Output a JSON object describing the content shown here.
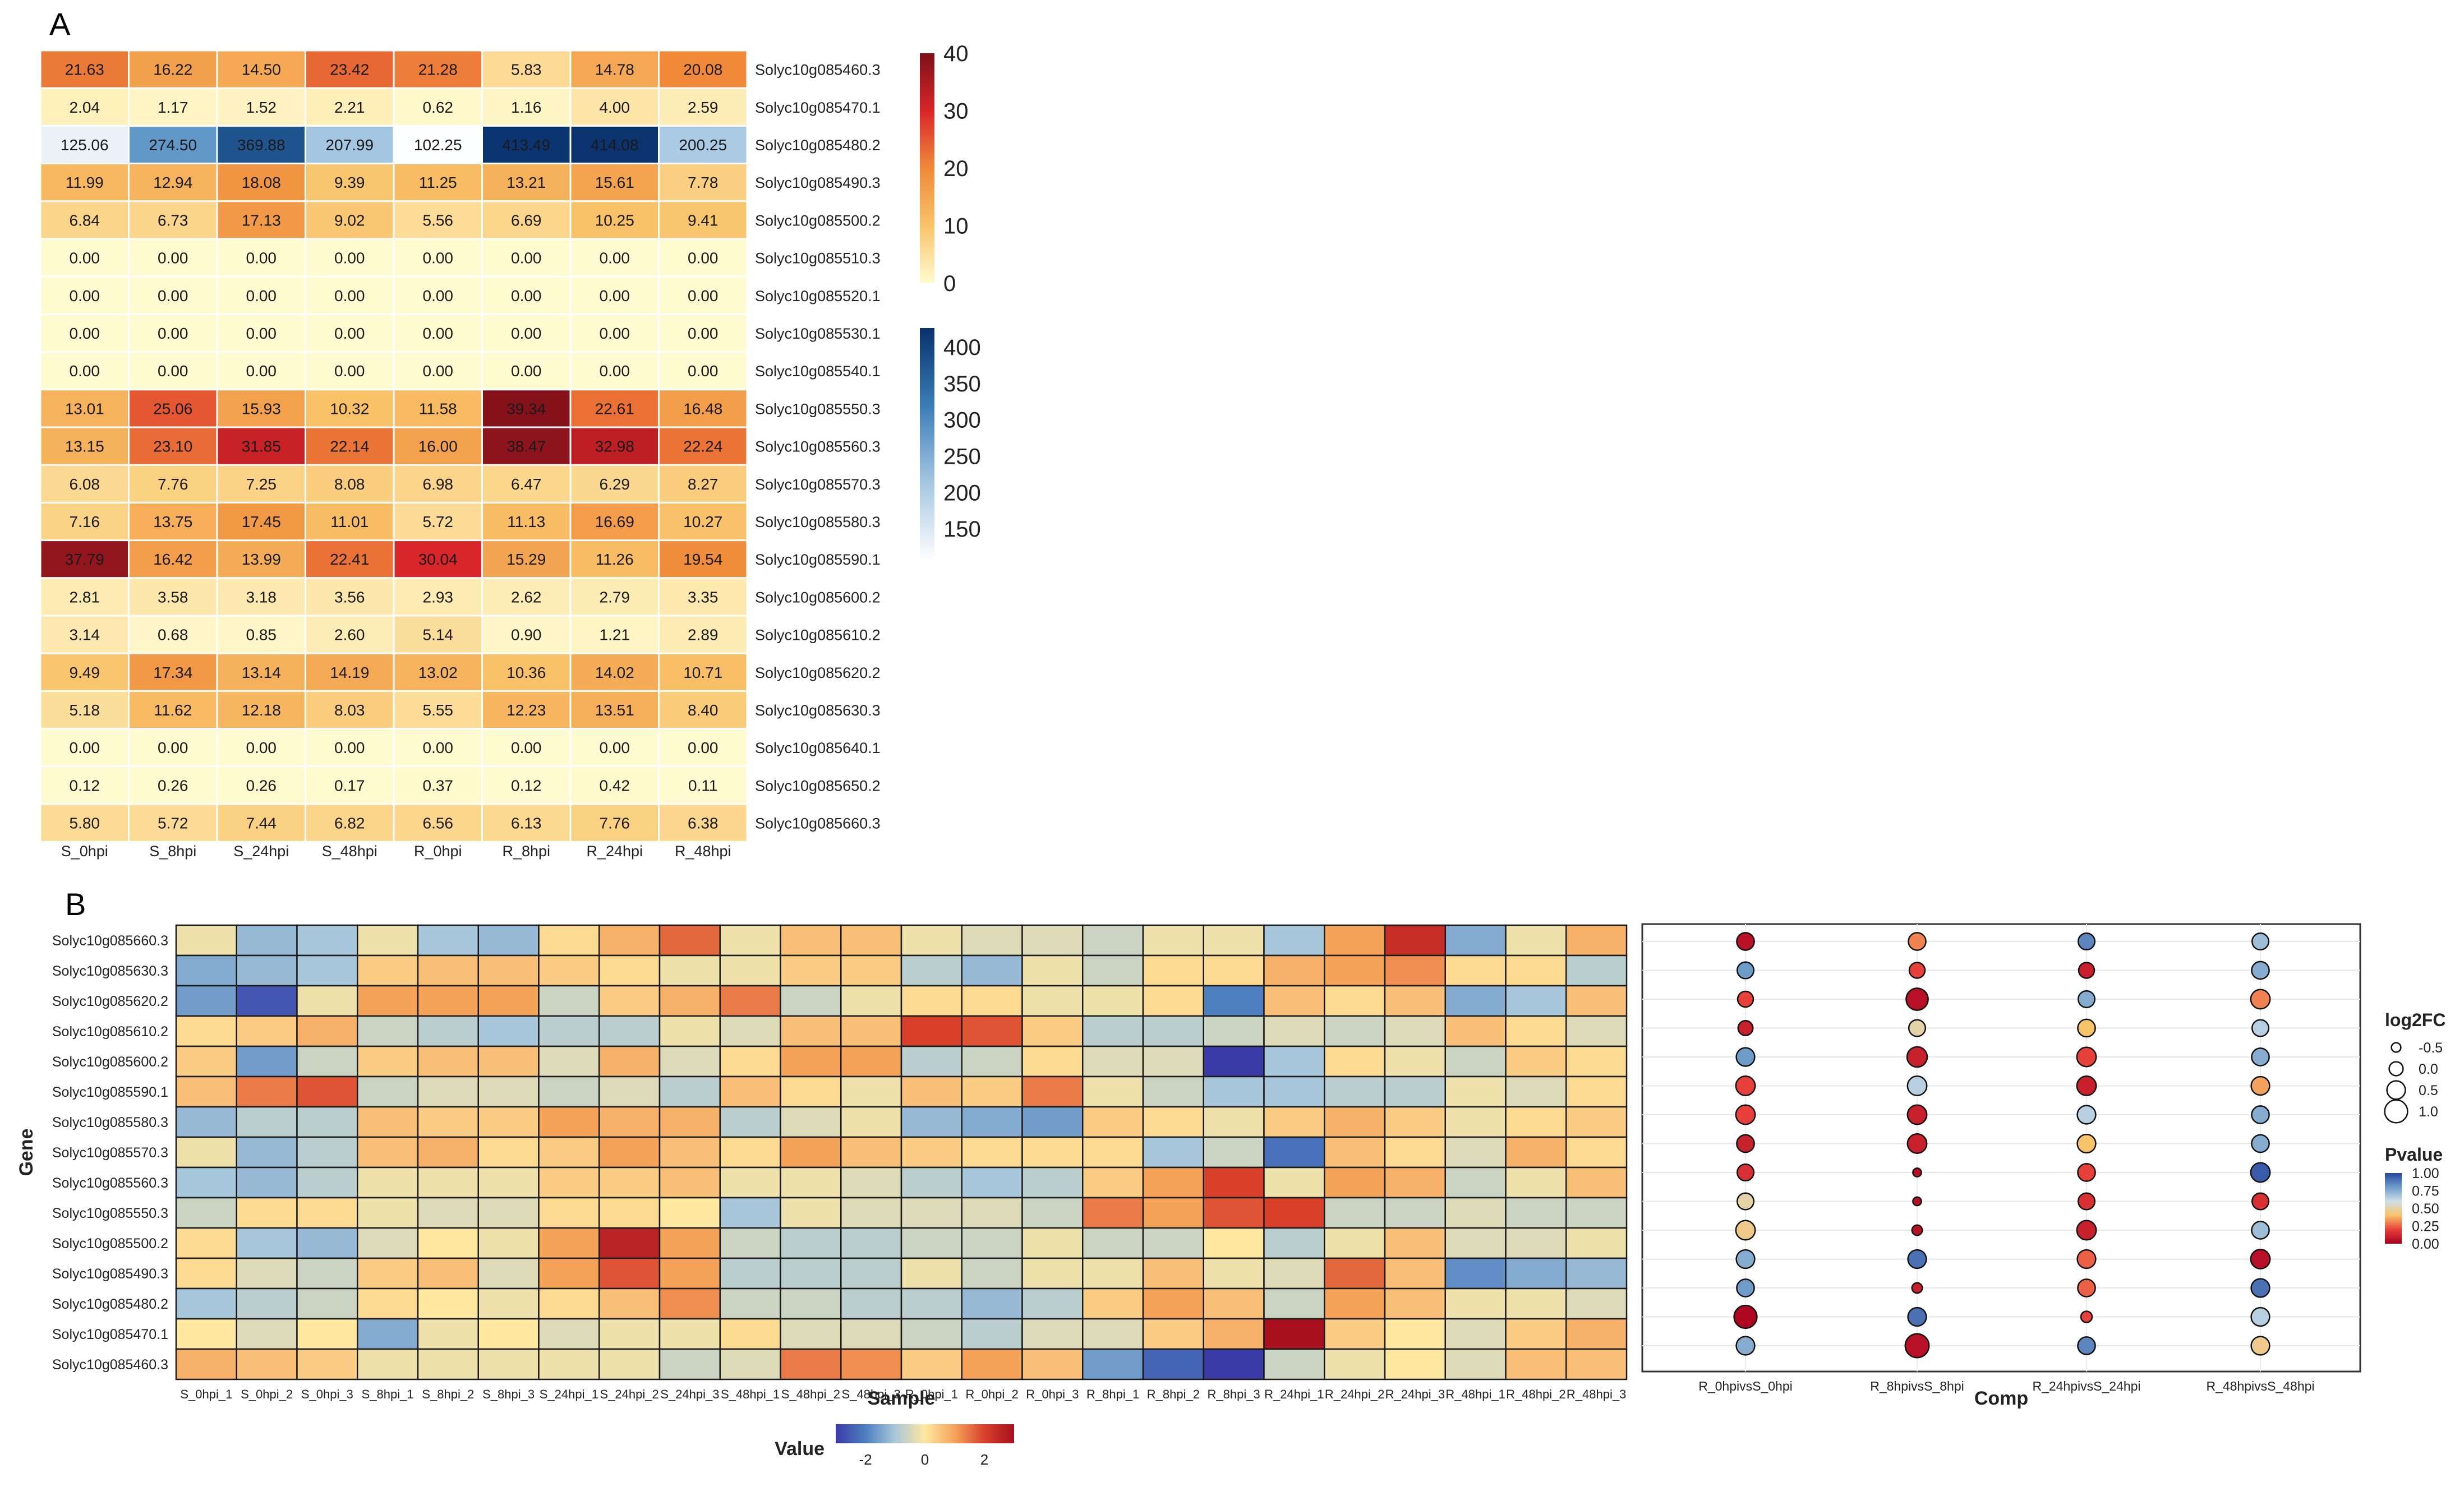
{
  "panel_labels": {
    "a": "A",
    "b": "B"
  },
  "chart_data": [
    {
      "id": "panelA",
      "type": "heatmap",
      "title": "",
      "columns": [
        "S_0hpi",
        "S_8hpi",
        "S_24hpi",
        "S_48hpi",
        "R_0hpi",
        "R_8hpi",
        "R_24hpi",
        "R_48hpi"
      ],
      "rows": [
        "Solyc10g085460.3",
        "Solyc10g085470.1",
        "Solyc10g085480.2",
        "Solyc10g085490.3",
        "Solyc10g085500.2",
        "Solyc10g085510.3",
        "Solyc10g085520.1",
        "Solyc10g085530.1",
        "Solyc10g085540.1",
        "Solyc10g085550.3",
        "Solyc10g085560.3",
        "Solyc10g085570.3",
        "Solyc10g085580.3",
        "Solyc10g085590.1",
        "Solyc10g085600.2",
        "Solyc10g085610.2",
        "Solyc10g085620.2",
        "Solyc10g085630.3",
        "Solyc10g085640.1",
        "Solyc10g085650.2",
        "Solyc10g085660.3"
      ],
      "values": [
        [
          "21.63",
          "16.22",
          "14.50",
          "23.42",
          "21.28",
          "5.83",
          "14.78",
          "20.08"
        ],
        [
          "2.04",
          "1.17",
          "1.52",
          "2.21",
          "0.62",
          "1.16",
          "4.00",
          "2.59"
        ],
        [
          "125.06",
          "274.50",
          "369.88",
          "207.99",
          "102.25",
          "413.49",
          "414.08",
          "200.25"
        ],
        [
          "11.99",
          "12.94",
          "18.08",
          "9.39",
          "11.25",
          "13.21",
          "15.61",
          "7.78"
        ],
        [
          "6.84",
          "6.73",
          "17.13",
          "9.02",
          "5.56",
          "6.69",
          "10.25",
          "9.41"
        ],
        [
          "0.00",
          "0.00",
          "0.00",
          "0.00",
          "0.00",
          "0.00",
          "0.00",
          "0.00"
        ],
        [
          "0.00",
          "0.00",
          "0.00",
          "0.00",
          "0.00",
          "0.00",
          "0.00",
          "0.00"
        ],
        [
          "0.00",
          "0.00",
          "0.00",
          "0.00",
          "0.00",
          "0.00",
          "0.00",
          "0.00"
        ],
        [
          "0.00",
          "0.00",
          "0.00",
          "0.00",
          "0.00",
          "0.00",
          "0.00",
          "0.00"
        ],
        [
          "13.01",
          "25.06",
          "15.93",
          "10.32",
          "11.58",
          "39.34",
          "22.61",
          "16.48"
        ],
        [
          "13.15",
          "23.10",
          "31.85",
          "22.14",
          "16.00",
          "38.47",
          "32.98",
          "22.24"
        ],
        [
          "6.08",
          "7.76",
          "7.25",
          "8.08",
          "6.98",
          "6.47",
          "6.29",
          "8.27"
        ],
        [
          "7.16",
          "13.75",
          "17.45",
          "11.01",
          "5.72",
          "11.13",
          "16.69",
          "10.27"
        ],
        [
          "37.79",
          "16.42",
          "13.99",
          "22.41",
          "30.04",
          "15.29",
          "11.26",
          "19.54"
        ],
        [
          "2.81",
          "3.58",
          "3.18",
          "3.56",
          "2.93",
          "2.62",
          "2.79",
          "3.35"
        ],
        [
          "3.14",
          "0.68",
          "0.85",
          "2.60",
          "5.14",
          "0.90",
          "1.21",
          "2.89"
        ],
        [
          "9.49",
          "17.34",
          "13.14",
          "14.19",
          "13.02",
          "10.36",
          "14.02",
          "10.71"
        ],
        [
          "5.18",
          "11.62",
          "12.18",
          "8.03",
          "5.55",
          "12.23",
          "13.51",
          "8.40"
        ],
        [
          "0.00",
          "0.00",
          "0.00",
          "0.00",
          "0.00",
          "0.00",
          "0.00",
          "0.00"
        ],
        [
          "0.12",
          "0.26",
          "0.26",
          "0.17",
          "0.37",
          "0.12",
          "0.42",
          "0.11"
        ],
        [
          "5.80",
          "5.72",
          "7.44",
          "6.82",
          "6.56",
          "6.13",
          "7.76",
          "6.38"
        ]
      ],
      "legends": [
        {
          "name": "low-scale",
          "range": [
            0,
            40
          ],
          "ticks": [
            "40",
            "30",
            "20",
            "10",
            "0"
          ],
          "colors": [
            "#FFFBD0",
            "#F9C36A",
            "#F08A3A",
            "#D8262A",
            "#7F1019"
          ]
        },
        {
          "name": "high-scale",
          "range": [
            100,
            420
          ],
          "ticks": [
            "400",
            "350",
            "300",
            "250",
            "200",
            "150"
          ],
          "colors": [
            "#FFFFFF",
            "#A6C7E2",
            "#3A7DB8",
            "#08306B"
          ]
        }
      ]
    },
    {
      "id": "panelB-heatmap",
      "type": "heatmap",
      "xlabel": "Sample",
      "ylabel": "Gene",
      "columns": [
        "S_0hpi_1",
        "S_0hpi_2",
        "S_0hpi_3",
        "S_8hpi_1",
        "S_8hpi_2",
        "S_8hpi_3",
        "S_24hpi_1",
        "S_24hpi_2",
        "S_24hpi_3",
        "S_48hpi_1",
        "S_48hpi_2",
        "S_48hpi_3",
        "R_0hpi_1",
        "R_0hpi_2",
        "R_0hpi_3",
        "R_8hpi_1",
        "R_8hpi_2",
        "R_8hpi_3",
        "R_24hpi_1",
        "R_24hpi_2",
        "R_24hpi_3",
        "R_48hpi_1",
        "R_48hpi_2",
        "R_48hpi_3"
      ],
      "rows": [
        "Solyc10g085660.3",
        "Solyc10g085630.3",
        "Solyc10g085620.2",
        "Solyc10g085610.2",
        "Solyc10g085600.2",
        "Solyc10g085590.1",
        "Solyc10g085580.3",
        "Solyc10g085570.3",
        "Solyc10g085560.3",
        "Solyc10g085550.3",
        "Solyc10g085500.2",
        "Solyc10g085490.3",
        "Solyc10g085480.2",
        "Solyc10g085470.1",
        "Solyc10g085460.3"
      ],
      "values": [
        [
          -0.2,
          -1.2,
          -1.0,
          -0.2,
          -1.0,
          -1.2,
          0.2,
          0.8,
          1.6,
          -0.2,
          0.6,
          0.6,
          -0.2,
          -0.4,
          -0.4,
          -0.6,
          -0.2,
          -0.2,
          -1.0,
          1.0,
          2.4,
          -1.4,
          -0.2,
          0.8
        ],
        [
          -1.4,
          -1.2,
          -1.0,
          0.4,
          0.6,
          0.6,
          0.4,
          0.2,
          -0.2,
          -0.2,
          0.4,
          0.4,
          -0.8,
          -1.2,
          -0.2,
          -0.6,
          0.2,
          0.2,
          0.8,
          1.0,
          1.2,
          0.2,
          0.2,
          -0.8
        ],
        [
          -1.6,
          -2.6,
          -0.2,
          1.0,
          1.0,
          1.0,
          -0.6,
          0.4,
          0.8,
          1.4,
          -0.6,
          -0.2,
          0.2,
          0.2,
          -0.2,
          -0.2,
          0.2,
          -2.0,
          0.6,
          0.2,
          0.6,
          -1.4,
          -1.0,
          0.6
        ],
        [
          0.2,
          0.4,
          0.8,
          -0.6,
          -0.8,
          -1.0,
          -0.8,
          -0.8,
          -0.2,
          -0.4,
          0.6,
          0.6,
          2.0,
          1.8,
          0.4,
          -0.8,
          -0.8,
          -0.6,
          -0.4,
          -0.6,
          -0.4,
          0.6,
          0.2,
          -0.4
        ],
        [
          0.4,
          -1.6,
          -0.6,
          0.4,
          0.6,
          0.6,
          -0.4,
          0.8,
          -0.4,
          0.2,
          1.0,
          1.0,
          -0.8,
          -0.6,
          0.2,
          -0.4,
          -0.4,
          -3.0,
          -1.0,
          0.2,
          -0.2,
          -0.6,
          0.4,
          0.2
        ],
        [
          0.6,
          1.4,
          1.8,
          -0.6,
          -0.4,
          -0.4,
          -0.6,
          -0.4,
          -0.8,
          0.6,
          0.2,
          -0.2,
          0.6,
          0.4,
          1.4,
          -0.2,
          -0.6,
          -1.0,
          -1.0,
          -0.8,
          -0.8,
          -0.2,
          -0.4,
          0.2
        ],
        [
          -1.2,
          -0.8,
          -0.8,
          0.6,
          0.4,
          0.4,
          1.0,
          0.8,
          0.8,
          -0.8,
          -0.4,
          -0.2,
          -1.2,
          -1.4,
          -1.6,
          0.4,
          0.2,
          -0.2,
          0.4,
          0.8,
          0.4,
          -0.2,
          0.2,
          0.4
        ],
        [
          -0.2,
          -1.2,
          -0.8,
          0.6,
          0.8,
          0.2,
          0.4,
          1.0,
          0.6,
          0.2,
          1.0,
          0.6,
          0.4,
          0.2,
          0.2,
          0.2,
          -1.0,
          -0.6,
          -2.2,
          0.6,
          0.2,
          -0.4,
          0.8,
          0.2
        ],
        [
          -1.0,
          -1.2,
          -0.8,
          -0.2,
          -0.2,
          -0.2,
          0.4,
          0.4,
          0.6,
          -0.2,
          -0.2,
          -0.4,
          -0.8,
          -1.0,
          -0.8,
          0.4,
          1.0,
          2.0,
          -0.2,
          1.0,
          0.8,
          -0.6,
          -0.2,
          0.6
        ],
        [
          -0.6,
          0.2,
          0.2,
          -0.2,
          -0.4,
          -0.4,
          0.2,
          0.2,
          0.0,
          -1.0,
          -0.2,
          -0.4,
          -0.4,
          -0.4,
          -0.6,
          1.4,
          1.0,
          1.8,
          2.0,
          -0.6,
          -0.6,
          -0.4,
          -0.6,
          -0.6
        ],
        [
          0.2,
          -1.0,
          -1.2,
          -0.4,
          0.0,
          -0.2,
          1.0,
          2.6,
          1.0,
          -0.6,
          -0.8,
          -0.8,
          -0.6,
          -0.6,
          -0.2,
          -0.6,
          -0.6,
          0.0,
          -0.8,
          -0.2,
          0.6,
          -0.4,
          -0.4,
          -0.2
        ],
        [
          0.2,
          -0.4,
          -0.6,
          0.4,
          0.6,
          -0.4,
          1.0,
          1.8,
          1.0,
          -0.8,
          -0.8,
          -0.8,
          -0.2,
          -0.6,
          -0.2,
          -0.2,
          0.6,
          -0.2,
          -0.4,
          1.6,
          0.6,
          -1.8,
          -1.4,
          -1.2
        ],
        [
          -1.0,
          -0.8,
          -0.6,
          0.2,
          0.0,
          -0.2,
          0.2,
          0.6,
          1.2,
          -0.6,
          -0.6,
          -0.8,
          -0.8,
          -1.2,
          -0.8,
          0.4,
          1.0,
          0.6,
          -0.6,
          1.0,
          0.6,
          -0.2,
          -0.2,
          -0.4
        ],
        [
          0.0,
          -0.4,
          0.0,
          -1.4,
          -0.2,
          0.0,
          -0.4,
          -0.2,
          -0.2,
          0.2,
          -0.4,
          -0.4,
          -0.6,
          -0.8,
          -0.4,
          -0.4,
          0.4,
          0.8,
          3.2,
          0.4,
          0.0,
          -0.4,
          0.4,
          0.8
        ],
        [
          0.8,
          0.6,
          0.4,
          -0.2,
          -0.2,
          -0.2,
          -0.2,
          -0.2,
          -0.6,
          -0.4,
          1.4,
          1.2,
          0.4,
          1.0,
          0.6,
          -1.6,
          -2.4,
          -3.0,
          -0.6,
          -0.2,
          0.0,
          -0.4,
          0.6,
          0.6
        ]
      ],
      "color_range": [
        -3,
        3
      ],
      "legend": {
        "title": "Value",
        "ticks": [
          "-2",
          "0",
          "2"
        ],
        "colors": [
          "#3B3BA8",
          "#4E7FC0",
          "#A9C7DA",
          "#FFE8A0",
          "#F6A35A",
          "#D8402C",
          "#A8101E"
        ]
      }
    },
    {
      "id": "panelB-dots",
      "type": "scatter",
      "xlabel": "Comp",
      "categories": [
        "R_0hpivsS_0hpi",
        "R_8hpivsS_8hpi",
        "R_24hpivsS_24hpi",
        "R_48hpivsS_48hpi"
      ],
      "rows": [
        "Solyc10g085660.3",
        "Solyc10g085630.3",
        "Solyc10g085620.2",
        "Solyc10g085610.2",
        "Solyc10g085600.2",
        "Solyc10g085590.1",
        "Solyc10g085580.3",
        "Solyc10g085570.3",
        "Solyc10g085560.3",
        "Solyc10g085550.3",
        "Solyc10g085500.2",
        "Solyc10g085490.3",
        "Solyc10g085480.2",
        "Solyc10g085470.1",
        "Solyc10g085460.3"
      ],
      "log2fc": [
        [
          0.4,
          0.4,
          0.3,
          0.3
        ],
        [
          0.3,
          0.2,
          0.2,
          0.4
        ],
        [
          0.2,
          0.9,
          0.3,
          0.6
        ],
        [
          0.1,
          0.3,
          0.4,
          0.3
        ],
        [
          0.5,
          0.7,
          0.6,
          0.4
        ],
        [
          0.6,
          0.6,
          0.6,
          0.5
        ],
        [
          0.6,
          0.6,
          0.5,
          0.4
        ],
        [
          0.4,
          0.6,
          0.5,
          0.4
        ],
        [
          0.3,
          -0.6,
          0.4,
          0.6
        ],
        [
          0.3,
          -0.6,
          0.3,
          0.3
        ],
        [
          0.6,
          -0.4,
          0.6,
          0.4
        ],
        [
          0.5,
          0.5,
          0.5,
          0.6
        ],
        [
          0.4,
          -0.4,
          0.4,
          0.5
        ],
        [
          1.0,
          0.5,
          -0.3,
          0.5
        ],
        [
          0.5,
          1.1,
          0.4,
          0.5
        ]
      ],
      "pvalue": [
        [
          0.05,
          0.3,
          0.85,
          0.7
        ],
        [
          0.8,
          0.2,
          0.1,
          0.75
        ],
        [
          0.2,
          0.05,
          0.75,
          0.3
        ],
        [
          0.1,
          0.5,
          0.4,
          0.65
        ],
        [
          0.8,
          0.1,
          0.2,
          0.75
        ],
        [
          0.2,
          0.65,
          0.1,
          0.35
        ],
        [
          0.2,
          0.1,
          0.65,
          0.75
        ],
        [
          0.1,
          0.1,
          0.4,
          0.75
        ],
        [
          0.15,
          0.05,
          0.2,
          0.95
        ],
        [
          0.5,
          0.05,
          0.15,
          0.15
        ],
        [
          0.45,
          0.05,
          0.1,
          0.7
        ],
        [
          0.75,
          0.9,
          0.25,
          0.05
        ],
        [
          0.8,
          0.1,
          0.25,
          0.9
        ],
        [
          0.02,
          0.9,
          0.2,
          0.65
        ],
        [
          0.75,
          0.05,
          0.85,
          0.45
        ]
      ],
      "legends": {
        "size": {
          "title": "log2FC",
          "ticks": [
            "-0.5",
            "0.0",
            "0.5",
            "1.0"
          ],
          "values": [
            -0.5,
            0.0,
            0.5,
            1.0
          ]
        },
        "color": {
          "title": "Pvalue",
          "ticks": [
            "1.00",
            "0.75",
            "0.50",
            "0.25",
            "0.00"
          ],
          "range": [
            0,
            1
          ],
          "colors": [
            "#A8001E",
            "#E8403A",
            "#F9C36A",
            "#CFE0E8",
            "#6E9CC8",
            "#2845A0"
          ]
        }
      }
    }
  ]
}
